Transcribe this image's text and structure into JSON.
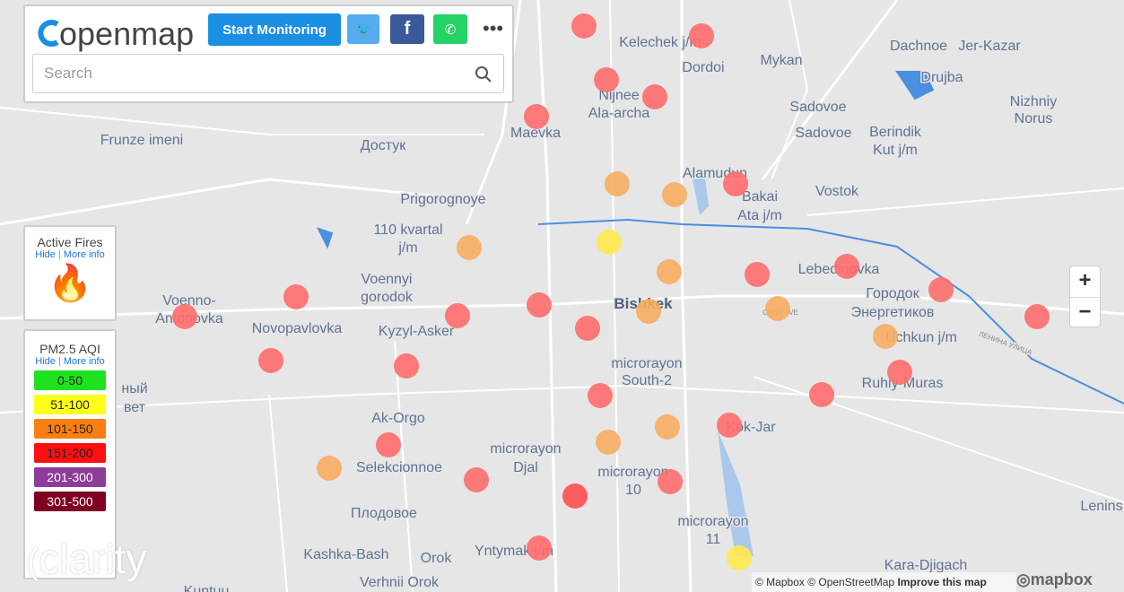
{
  "header": {
    "logo": "openmap",
    "button": "Start Monitoring"
  },
  "search": {
    "placeholder": "Search"
  },
  "fires_panel": {
    "title": "Active Fires",
    "hide": "Hide",
    "more_info": "More info"
  },
  "aqi_panel": {
    "title": "PM2.5 AQI",
    "hide": "Hide",
    "more_info": "More info",
    "levels": [
      {
        "label": "0-50",
        "color": "#1fe21f"
      },
      {
        "label": "51-100",
        "color": "#ffff1a"
      },
      {
        "label": "101-150",
        "color": "#fb7e12"
      },
      {
        "label": "151-200",
        "color": "#ff0f0f"
      },
      {
        "label": "201-300",
        "color": "#8e3c99"
      },
      {
        "label": "301-500",
        "color": "#7e0023"
      }
    ]
  },
  "brand": "clarity",
  "zoom": {
    "in": "+",
    "out": "−"
  },
  "attribution": {
    "text": "© Mapbox © OpenStreetMap",
    "improve": "Improve this map",
    "logo": "mapbox"
  },
  "map_labels": [
    "Kelechek j/m",
    "Dordoi",
    "Mykan",
    "Dachnoe",
    "Jer-Kazar",
    "Drujba",
    "Nizhniy",
    "Norus",
    "Nijnee",
    "Ala-archa",
    "Maevka",
    "Frunze imeni",
    "Достук",
    "Sadovoe",
    "Sadovoe",
    "Berindik",
    "Kut j/m",
    "Alamudun",
    "Bakai",
    "Ata j/m",
    "Vostok",
    "Prigorognoye",
    "110 kvartal",
    "j/m",
    "Lebedinovka",
    "Voennyi",
    "gorodok",
    "Voenno-",
    "Antonovka",
    "Bishkek",
    "Городок",
    "Энергетиков",
    "Novopavlovka",
    "Kyzyl-Asker",
    "Uchkun j/m",
    "microrayon",
    "South-2",
    "Ruhiy-Muras",
    "ный",
    "вет",
    "Ak-Orgo",
    "Kok-Jar",
    "microrayon",
    "Djal",
    "Selekcionnoe",
    "microrayon",
    "10",
    "Плодовое",
    "Lenins",
    "microrayon",
    "11",
    "Kashka-Bash",
    "Orok",
    "Yntymak j/m",
    "Kara-Djigach",
    "Verhnii Orok",
    "Kuntuu",
    "CHUY AVE",
    "ЛЕНИНА УЛИЦА"
  ]
}
